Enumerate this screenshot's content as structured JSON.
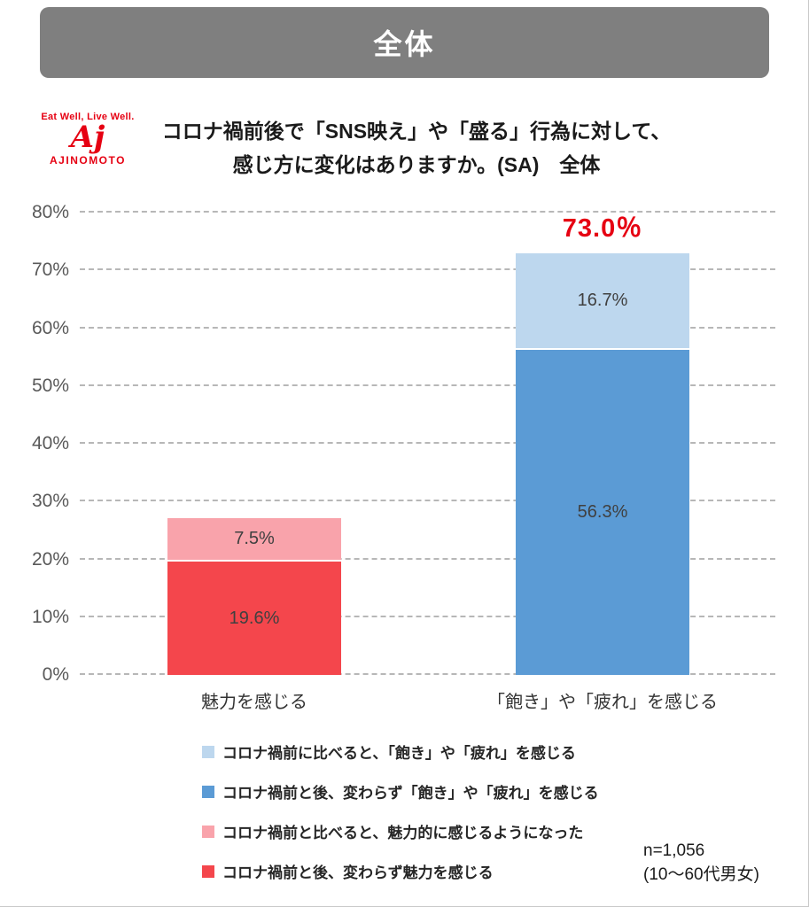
{
  "banner": {
    "label": "全体"
  },
  "logo": {
    "tagline": "Eat Well, Live Well.",
    "mark": "Aj",
    "brand": "AJINOMOTO"
  },
  "title": {
    "line1": "コロナ禍前後で「SNS映え」や「盛る」行為に対して、",
    "line2": "感じ方に変化はありますか。(SA)　全体"
  },
  "chart_data": {
    "type": "bar",
    "stacked": true,
    "ylim": [
      0,
      80
    ],
    "ytick_step": 10,
    "yticks": [
      "0%",
      "10%",
      "20%",
      "30%",
      "40%",
      "50%",
      "60%",
      "70%",
      "80%"
    ],
    "grid": "dashed horizontal gridlines",
    "legend_position": "bottom",
    "categories": [
      "魅力を感じる",
      "「飽き」や「疲れ」を感じる"
    ],
    "bars": [
      {
        "category": "魅力を感じる",
        "total": 27.1,
        "segments": [
          {
            "name": "コロナ禍前と後、変わらず魅力を感じる",
            "value": 19.6,
            "label": "19.6%",
            "color": "#F4464C"
          },
          {
            "name": "コロナ禍前と比べると、魅力的に感じるようになった",
            "value": 7.5,
            "label": "7.5%",
            "color": "#F9A3AB"
          }
        ]
      },
      {
        "category": "「飽き」や「疲れ」を感じる",
        "total": 73.0,
        "total_label": "73.0％",
        "segments": [
          {
            "name": "コロナ禍前と後、変わらず「飽き」や「疲れ」を感じる",
            "value": 56.3,
            "label": "56.3%",
            "color": "#5B9BD5"
          },
          {
            "name": "コロナ禍前に比べると、「飽き」や「疲れ」を感じる",
            "value": 16.7,
            "label": "16.7%",
            "color": "#BDD7EE"
          }
        ]
      }
    ]
  },
  "legend": [
    {
      "label": "コロナ禍前に比べると、「飽き」や「疲れ」を感じる",
      "color": "#BDD7EE"
    },
    {
      "label": "コロナ禍前と後、変わらず「飽き」や「疲れ」を感じる",
      "color": "#5B9BD5"
    },
    {
      "label": "コロナ禍前と比べると、魅力的に感じるようになった",
      "color": "#F9A3AB"
    },
    {
      "label": "コロナ禍前と後、変わらず魅力を感じる",
      "color": "#F4464C"
    }
  ],
  "footnote": {
    "n": "n=1,056",
    "scope": "(10〜60代男女)"
  },
  "colors": {
    "banner_gray": "#7F7F7F",
    "red": "#F4464C",
    "pink": "#F9A3AB",
    "blue": "#5B9BD5",
    "light_blue": "#BDD7EE",
    "accent_red": "#E60012"
  }
}
